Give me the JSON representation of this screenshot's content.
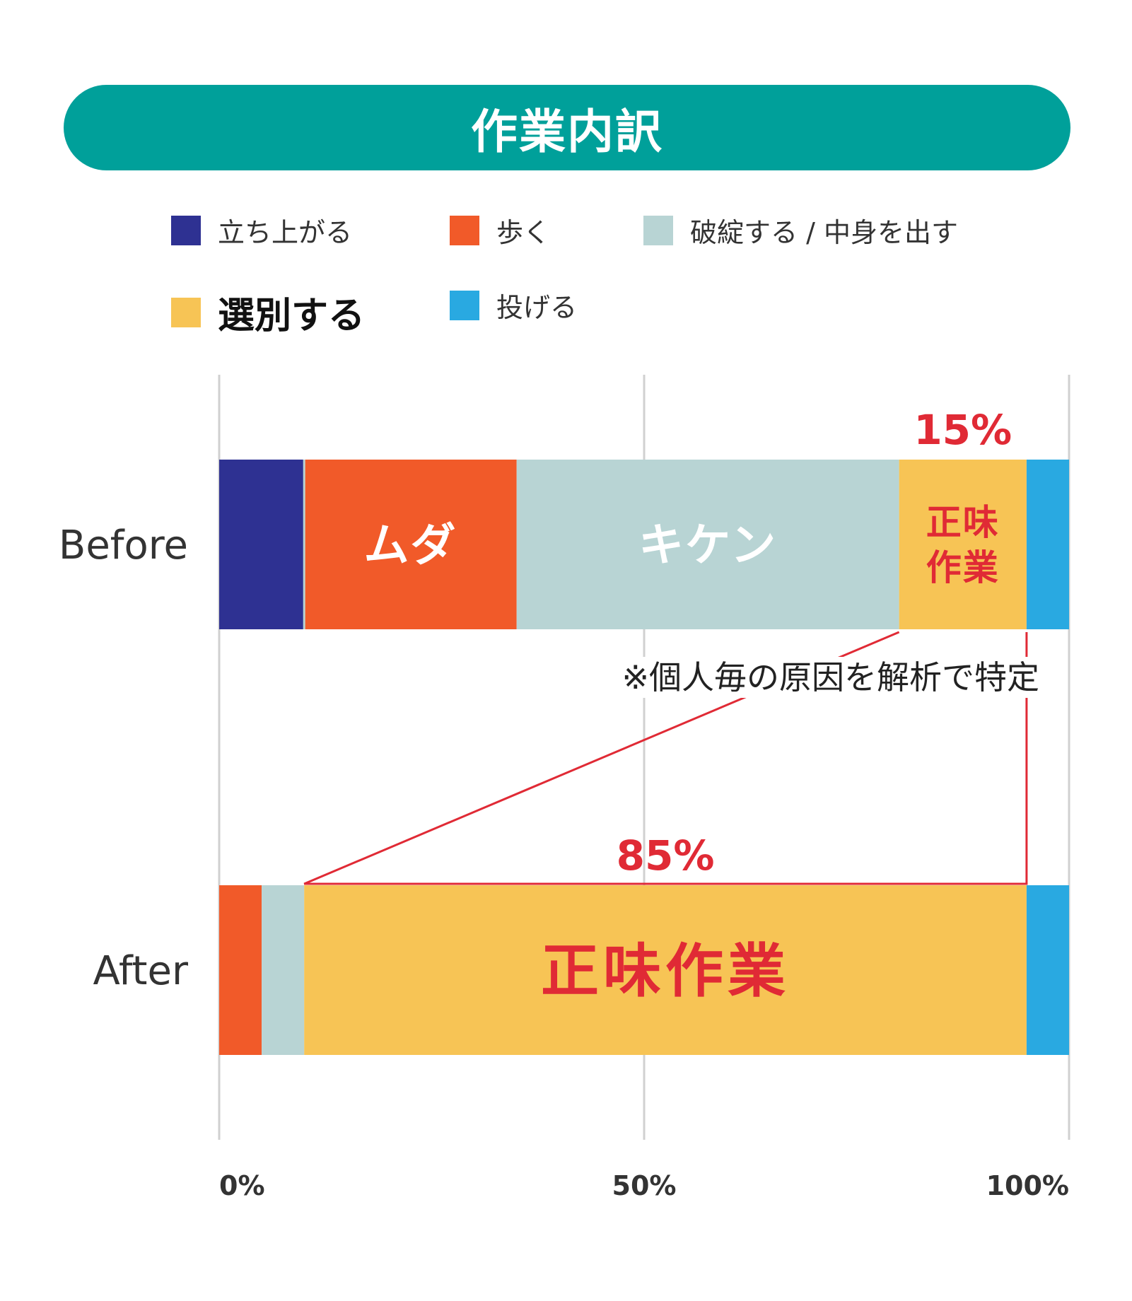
{
  "title": "作業内訳",
  "colors": {
    "title_bg": "#00A09A",
    "highlight": "#E02A35",
    "grid": "#D0D0D0"
  },
  "legend": [
    {
      "label": "立ち上がる",
      "color": "#2E3192",
      "bold": false
    },
    {
      "label": "歩く",
      "color": "#F15A29",
      "bold": false
    },
    {
      "label": "破綻する / 中身を出す",
      "color": "#B8D4D4",
      "bold": false
    },
    {
      "label": "選別する",
      "color": "#F7C455",
      "bold": true
    },
    {
      "label": "投げる",
      "color": "#29A9E1",
      "bold": false
    }
  ],
  "chart_data": {
    "type": "bar",
    "orientation": "horizontal",
    "stacked": true,
    "categories": [
      "Before",
      "After"
    ],
    "series": [
      {
        "name": "立ち上がる",
        "values": [
          10,
          0
        ]
      },
      {
        "name": "歩く",
        "values": [
          25,
          5
        ]
      },
      {
        "name": "破綻する / 中身を出す",
        "values": [
          45,
          5
        ]
      },
      {
        "name": "選別する",
        "values": [
          15,
          85
        ]
      },
      {
        "name": "投げる",
        "values": [
          5,
          5
        ]
      }
    ],
    "segment_labels": [
      {
        "category": "Before",
        "series": "歩く",
        "text": "ムダ",
        "color": "#FFFFFF"
      },
      {
        "category": "Before",
        "series": "破綻する / 中身を出す",
        "text": "キケン",
        "color": "#FFFFFF"
      },
      {
        "category": "Before",
        "series": "選別する",
        "text": "正味\n作業",
        "color": "#E02A35"
      },
      {
        "category": "After",
        "series": "選別する",
        "text": "正味作業",
        "color": "#E02A35"
      }
    ],
    "value_labels": [
      {
        "category": "Before",
        "series": "選別する",
        "text": "15%"
      },
      {
        "category": "After",
        "series": "選別する",
        "text": "85%"
      }
    ],
    "annotation": "※個人毎の原因を解析で特定",
    "xlim": [
      0,
      100
    ],
    "xticks": [
      0,
      50,
      100
    ],
    "xtick_labels": [
      "0%",
      "50%",
      "100%"
    ],
    "grid": true
  }
}
